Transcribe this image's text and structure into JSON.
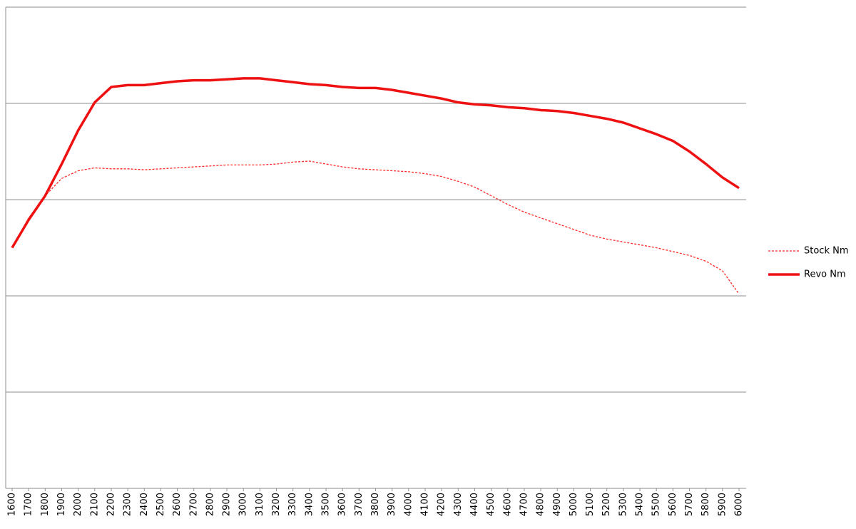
{
  "chart_data": {
    "type": "line",
    "categories": [
      "1600",
      "1700",
      "1800",
      "1900",
      "2000",
      "2100",
      "2200",
      "2300",
      "2400",
      "2500",
      "2600",
      "2700",
      "2800",
      "2900",
      "3000",
      "3100",
      "3200",
      "3300",
      "3400",
      "3500",
      "3600",
      "3700",
      "3800",
      "3900",
      "4000",
      "4100",
      "4200",
      "4300",
      "4400",
      "4500",
      "4600",
      "4700",
      "4800",
      "4900",
      "5000",
      "5100",
      "5200",
      "5300",
      "5400",
      "5500",
      "5600",
      "5700",
      "5800",
      "5900",
      "6000"
    ],
    "series": [
      {
        "name": "Stock Nm",
        "color": "#ff2a2a",
        "dash": "dashed",
        "values": [
          250,
          281,
          304,
          322,
          330,
          333,
          332,
          332,
          331,
          332,
          333,
          334,
          335,
          336,
          336,
          336,
          337,
          339,
          340,
          337,
          334,
          332,
          331,
          330,
          329,
          327,
          324,
          319,
          313,
          304,
          295,
          287,
          281,
          275,
          269,
          263,
          259,
          256,
          253,
          250,
          246,
          242,
          236,
          226,
          202
        ]
      },
      {
        "name": "Revo Nm",
        "color": "#ee1111",
        "dash": "solid",
        "values": [
          250,
          279,
          304,
          337,
          372,
          401,
          417,
          419,
          419,
          421,
          423,
          424,
          424,
          425,
          426,
          426,
          424,
          422,
          420,
          419,
          417,
          416,
          416,
          414,
          411,
          408,
          405,
          401,
          399,
          398,
          396,
          395,
          393,
          392,
          390,
          387,
          384,
          380,
          374,
          368,
          361,
          350,
          337,
          323,
          312
        ]
      }
    ],
    "ylim": [
      0,
      500
    ],
    "ygrid": [
      100,
      200,
      300,
      400,
      500
    ],
    "grid": true,
    "legend": "right"
  }
}
